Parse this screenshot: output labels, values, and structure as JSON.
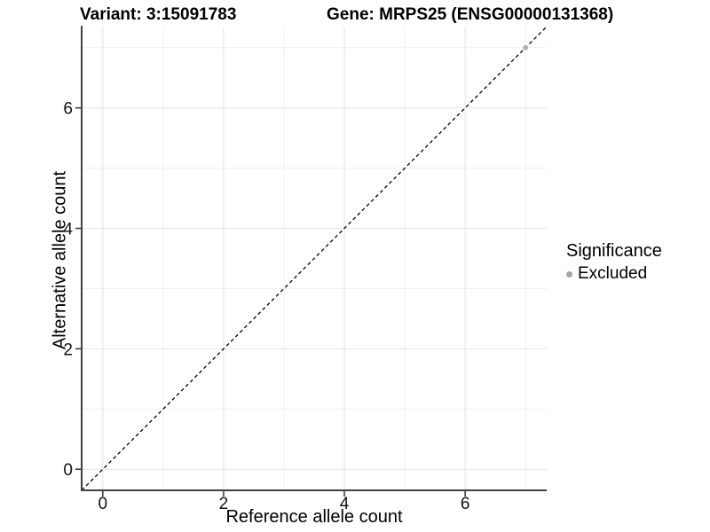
{
  "header": {
    "variant_label": "Variant: 3:15091783",
    "gene_label": "Gene: MRPS25 (ENSG00000131368)"
  },
  "chart_data": {
    "type": "scatter",
    "title": "Variant: 3:15091783   Gene: MRPS25 (ENSG00000131368)",
    "xlabel": "Reference allele count",
    "ylabel": "Alternative allele count",
    "xlim": [
      -0.35,
      7.35
    ],
    "ylim": [
      -0.35,
      7.35
    ],
    "x_ticks": [
      0,
      2,
      4,
      6
    ],
    "y_ticks": [
      0,
      2,
      4,
      6
    ],
    "x_minor_gridlines": [
      1,
      3,
      5,
      7
    ],
    "y_minor_gridlines": [
      1,
      3,
      5,
      7
    ],
    "grid": true,
    "legend": {
      "title": "Significance",
      "position": "right",
      "entries": [
        {
          "label": "Excluded",
          "color": "#a6a6a6"
        }
      ]
    },
    "series": [
      {
        "name": "Excluded",
        "color": "#b3b3b3",
        "points": [
          [
            7,
            7
          ]
        ]
      }
    ],
    "reference_line": {
      "kind": "identity",
      "slope": 1,
      "intercept": 0,
      "style": "dashed",
      "color": "#000000"
    },
    "colors": {
      "grid_major": "#e4e4e4",
      "grid_minor": "#f0f0f0",
      "axis_line": "#404040",
      "tick_mark": "#333333",
      "point": "#b3b3b3",
      "reference_line": "#000000"
    }
  }
}
